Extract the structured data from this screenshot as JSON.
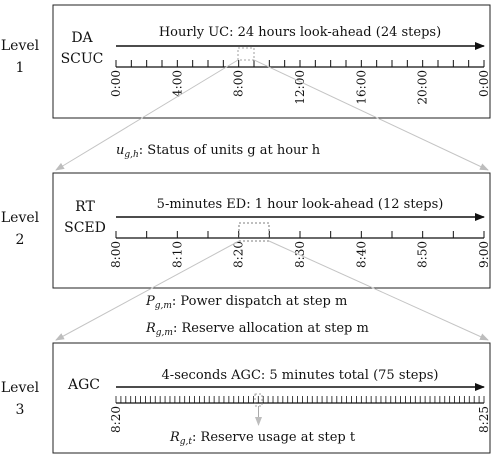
{
  "levels": [
    {
      "label_line1": "Level",
      "label_line2": "1",
      "system_line1": "DA",
      "system_line2": "SCUC",
      "header": "Hourly UC: 24 hours look-ahead (24 steps)",
      "minor_ticks": 24,
      "tick_labels": [
        "0:00",
        "4:00",
        "8:00",
        "12:00",
        "16:00",
        "20:00",
        "0:00"
      ]
    },
    {
      "label_line1": "Level",
      "label_line2": "2",
      "system_line1": "RT",
      "system_line2": "SCED",
      "header": "5-minutes ED: 1 hour look-ahead (12 steps)",
      "minor_ticks": 12,
      "tick_labels": [
        "8:00",
        "8:10",
        "8:20",
        "8:30",
        "8:40",
        "8:50",
        "9:00"
      ]
    },
    {
      "label_line1": "Level",
      "label_line2": "3",
      "system_line1": "AGC",
      "system_line2": "",
      "header": "4-seconds AGC: 5 minutes total (75 steps)",
      "minor_ticks": 75,
      "tick_labels": [
        "8:20",
        "8:25"
      ]
    }
  ],
  "annotations": {
    "u_symbol": "u",
    "u_subscript": "g,h",
    "u_text": ": Status of units g at hour h",
    "p_symbol": "P",
    "p_subscript": "g,m",
    "p_text": ": Power dispatch at step m",
    "r_symbol": "R",
    "r_subscript": "g,m",
    "r_text": ": Reserve allocation at step m",
    "rt_symbol": "R",
    "rt_subscript": "g,t",
    "rt_text": ": Reserve usage at step t"
  }
}
